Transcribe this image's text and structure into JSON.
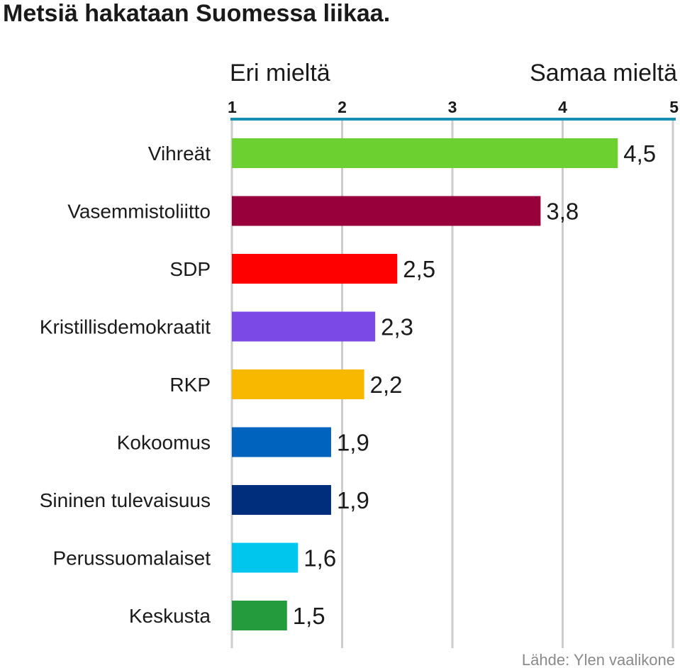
{
  "chart_data": {
    "type": "bar",
    "orientation": "horizontal",
    "title": "Metsiä hakataan Suomessa liikaa.",
    "axis_left_label": "Eri mieltä",
    "axis_right_label": "Samaa mieltä",
    "xlim": [
      1,
      5
    ],
    "ticks": [
      1,
      2,
      3,
      4,
      5
    ],
    "tick_labels": [
      "1",
      "2",
      "3",
      "4",
      "5"
    ],
    "grid": true,
    "categories": [
      "Vihreät",
      "Vasemmistoliitto",
      "SDP",
      "Kristillisdemokraatit",
      "RKP",
      "Kokoomus",
      "Sininen tulevaisuus",
      "Perussuomalaiset",
      "Keskusta"
    ],
    "values": [
      4.5,
      3.8,
      2.5,
      2.3,
      2.2,
      1.9,
      1.9,
      1.6,
      1.5
    ],
    "value_labels": [
      "4,5",
      "3,8",
      "2,5",
      "2,3",
      "2,2",
      "1,9",
      "1,9",
      "1,6",
      "1,5"
    ],
    "colors": [
      "#6cd130",
      "#98003c",
      "#ff0000",
      "#7b4ae6",
      "#f8b800",
      "#0063bd",
      "#002e7c",
      "#00c6ee",
      "#249b3c"
    ],
    "axis_color": "#1a8fb4",
    "grid_color": "#cccccc",
    "source": "Lähde: Ylen vaalikone"
  }
}
